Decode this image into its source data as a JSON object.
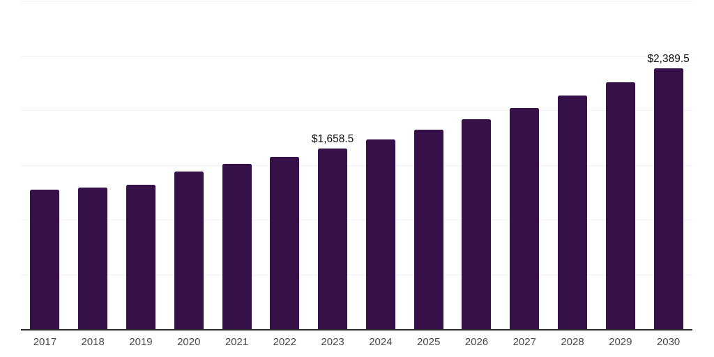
{
  "chart_data": {
    "type": "bar",
    "title": "",
    "xlabel": "",
    "ylabel": "",
    "categories": [
      "2017",
      "2018",
      "2019",
      "2020",
      "2021",
      "2022",
      "2023",
      "2024",
      "2025",
      "2026",
      "2027",
      "2028",
      "2029",
      "2030"
    ],
    "values": [
      1282,
      1300,
      1322,
      1444,
      1519,
      1580,
      1658.5,
      1742,
      1827,
      1926,
      2028,
      2140,
      2260,
      2389.5
    ],
    "annotations": [
      {
        "category": "2023",
        "text": "$1,658.5"
      },
      {
        "category": "2030",
        "text": "$2,389.5"
      }
    ],
    "ylim": [
      0,
      3000
    ],
    "grid_step": 500,
    "grid": true,
    "legend": false,
    "y_tick_labels_visible": false,
    "colors": {
      "bar": "#351049",
      "grid": "#f0f1f3",
      "axis_line": "#2b2b2b",
      "tick_label": "#4a4a4a",
      "data_label": "#0d0d0d",
      "background": "#ffffff"
    }
  }
}
